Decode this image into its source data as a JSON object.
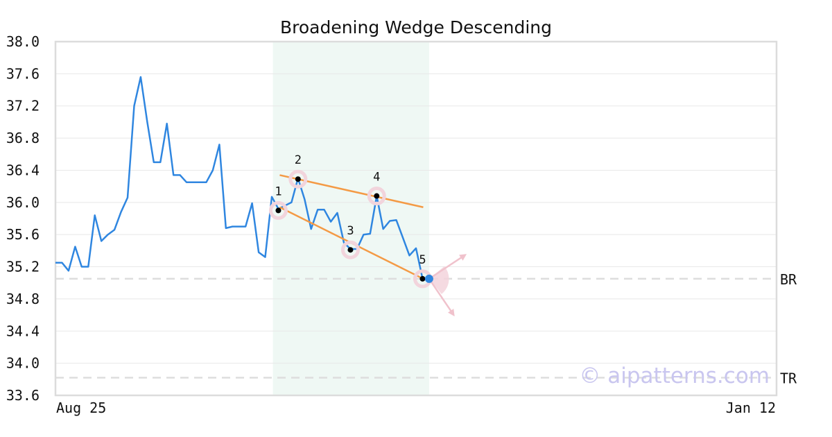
{
  "chart_data": {
    "type": "line",
    "title": "Broadening Wedge Descending",
    "xlabel": "",
    "ylabel": "",
    "ylim": [
      33.6,
      38.0
    ],
    "y_ticks": [
      "38.0",
      "37.6",
      "37.2",
      "36.8",
      "36.4",
      "36.0",
      "35.6",
      "35.2",
      "34.8",
      "34.4",
      "34.0",
      "33.6"
    ],
    "x_tick_labels": [
      "Aug 25",
      "Jan 12"
    ],
    "grid": true,
    "series": [
      {
        "color": "#2f86e0",
        "values": [
          35.25,
          35.25,
          35.15,
          35.45,
          35.2,
          35.2,
          35.84,
          35.52,
          35.6,
          35.66,
          35.88,
          36.06,
          37.2,
          37.56,
          37.0,
          36.5,
          36.5,
          36.98,
          36.34,
          36.34,
          36.25,
          36.25,
          36.25,
          36.25,
          36.4,
          36.72,
          35.68,
          35.7,
          35.7,
          35.7,
          35.99,
          35.38,
          35.32,
          36.07,
          35.92,
          35.96,
          36.0,
          36.3,
          36.04,
          35.67,
          35.91,
          35.91,
          35.76,
          35.87,
          35.5,
          35.42,
          35.42,
          35.6,
          35.61,
          36.08,
          35.67,
          35.77,
          35.78,
          35.56,
          35.34,
          35.43,
          35.05
        ]
      }
    ],
    "highlight_range": [
      32,
      57
    ],
    "pattern_points": [
      {
        "label": "1",
        "index": 34,
        "y": 35.9
      },
      {
        "label": "2",
        "index": 37,
        "y": 36.29
      },
      {
        "label": "3",
        "index": 45,
        "y": 35.41
      },
      {
        "label": "4",
        "index": 49,
        "y": 36.08
      },
      {
        "label": "5",
        "index": 56,
        "y": 35.05
      }
    ],
    "trendlines": [
      {
        "from": {
          "index": 34,
          "y": 36.34
        },
        "to": {
          "index": 56,
          "y": 35.94
        },
        "color": "#f49a45"
      },
      {
        "from": {
          "index": 34,
          "y": 35.94
        },
        "to": {
          "index": 56,
          "y": 35.05
        },
        "color": "#f49a45"
      }
    ],
    "reference_lines": [
      {
        "label": "BR",
        "y": 35.05
      },
      {
        "label": "TR",
        "y": 33.82
      }
    ],
    "current_point": {
      "index": 57,
      "y": 35.05,
      "color": "#2f86e0"
    },
    "watermark": "© aipatterns.com"
  }
}
